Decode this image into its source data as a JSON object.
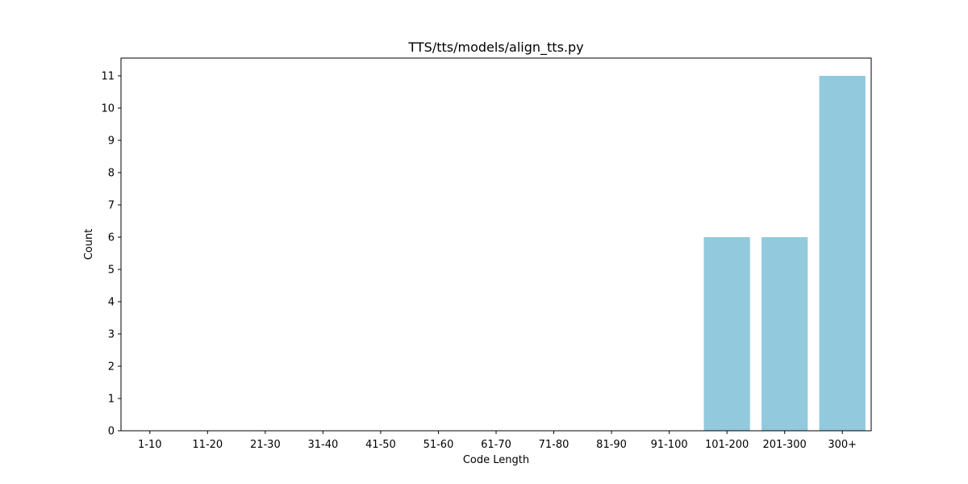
{
  "chart_data": {
    "type": "bar",
    "title": "TTS/tts/models/align_tts.py",
    "xlabel": "Code Length",
    "ylabel": "Count",
    "categories": [
      "1-10",
      "11-20",
      "21-30",
      "31-40",
      "41-50",
      "51-60",
      "61-70",
      "71-80",
      "81-90",
      "91-100",
      "101-200",
      "201-300",
      "300+"
    ],
    "values": [
      0,
      0,
      0,
      0,
      0,
      0,
      0,
      0,
      0,
      0,
      6,
      6,
      11
    ],
    "ylim": [
      0,
      11.55
    ],
    "yticks": [
      0,
      1,
      2,
      3,
      4,
      5,
      6,
      7,
      8,
      9,
      10,
      11
    ],
    "bar_color": "#92c9dd",
    "grid": false,
    "legend": "none"
  }
}
